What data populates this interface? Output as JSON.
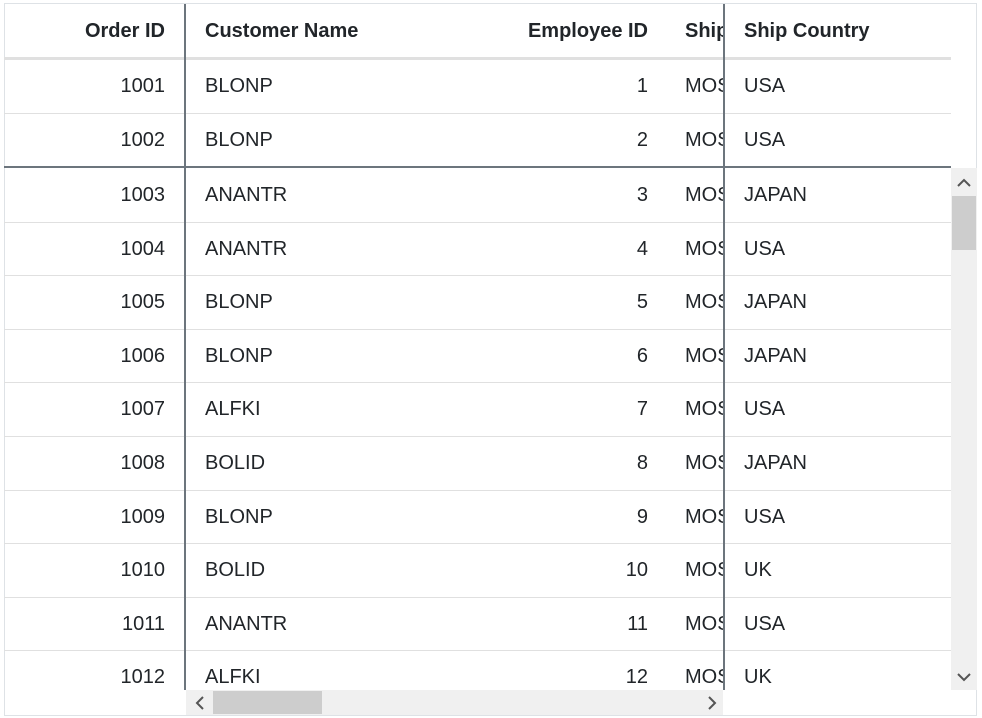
{
  "grid": {
    "columns": [
      "Order ID",
      "Customer Name",
      "Employee ID",
      "Ship",
      "Ship Country"
    ],
    "rows": [
      [
        1001,
        "BLONP",
        1,
        "MOS",
        "USA"
      ],
      [
        1002,
        "BLONP",
        2,
        "MOS",
        "USA"
      ],
      [
        1003,
        "ANANTR",
        3,
        "MOS",
        "JAPAN"
      ],
      [
        1004,
        "ANANTR",
        4,
        "MOS",
        "USA"
      ],
      [
        1005,
        "BLONP",
        5,
        "MOS",
        "JAPAN"
      ],
      [
        1006,
        "BLONP",
        6,
        "MOS",
        "JAPAN"
      ],
      [
        1007,
        "ALFKI",
        7,
        "MOS",
        "USA"
      ],
      [
        1008,
        "BOLID",
        8,
        "MOS",
        "JAPAN"
      ],
      [
        1009,
        "BLONP",
        9,
        "MOS",
        "USA"
      ],
      [
        1010,
        "BOLID",
        10,
        "MOS",
        "UK"
      ],
      [
        1011,
        "ANANTR",
        11,
        "MOS",
        "USA"
      ],
      [
        1012,
        "ALFKI",
        12,
        "MOS",
        "UK"
      ]
    ]
  }
}
